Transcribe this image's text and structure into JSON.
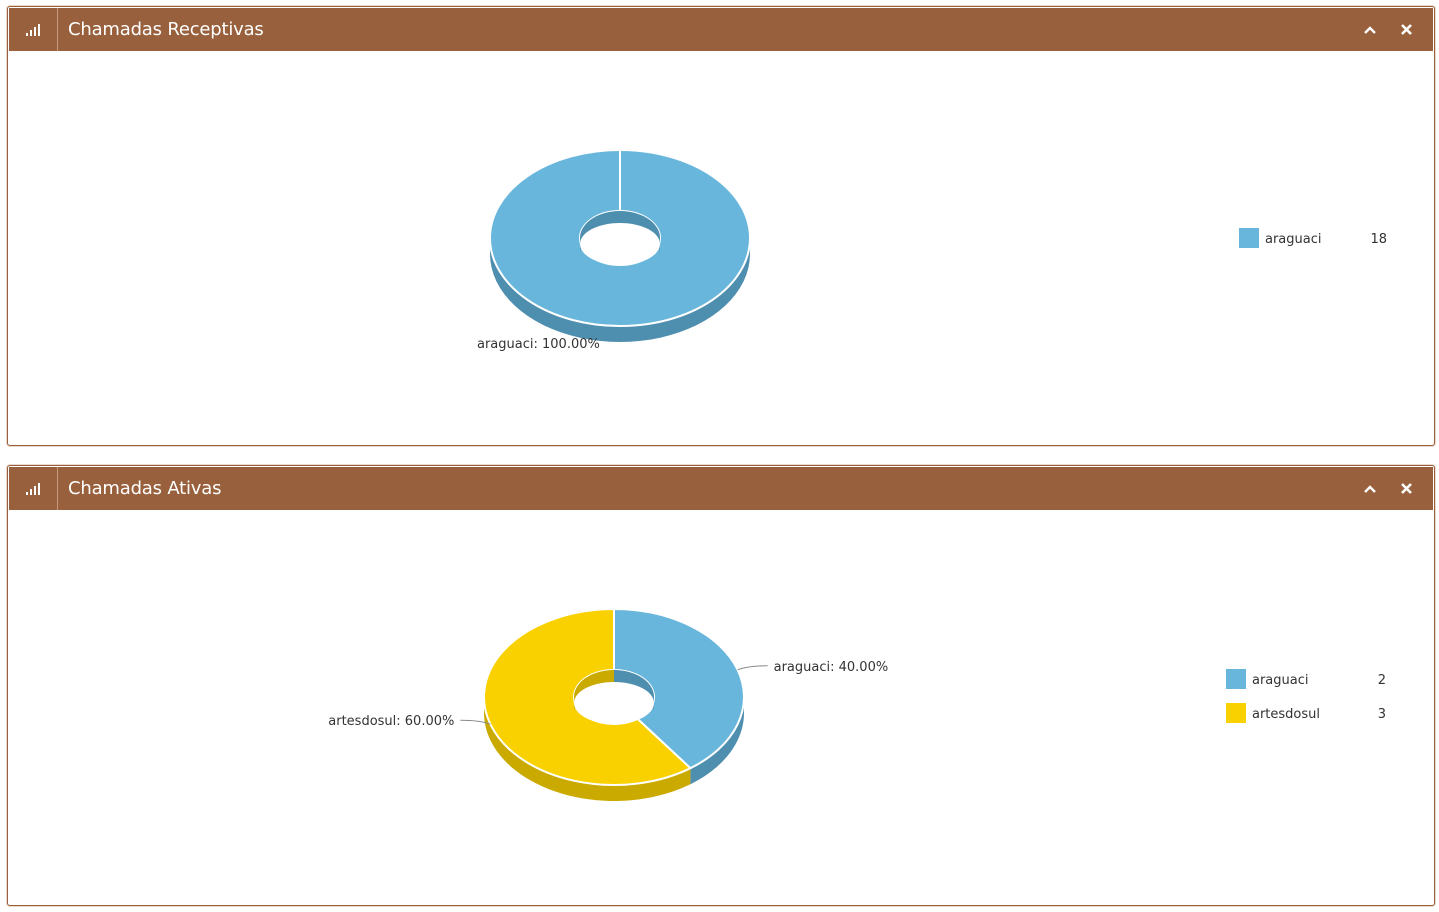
{
  "widgets": [
    {
      "title": "Chamadas Receptivas",
      "icon": "bar-signal-icon",
      "tools": [
        "chevron-up-icon",
        "close-icon"
      ],
      "chart_data": {
        "type": "pie",
        "donut": true,
        "three_d": true,
        "legend_position": "right",
        "slices": [
          {
            "label": "araguaci",
            "value": 18,
            "percent_label": "araguaci: 100.00%",
            "color": "#69b6dc",
            "side_color": "#4e8fb0"
          }
        ]
      }
    },
    {
      "title": "Chamadas Ativas",
      "icon": "bar-signal-icon",
      "tools": [
        "chevron-up-icon",
        "close-icon"
      ],
      "chart_data": {
        "type": "pie",
        "donut": true,
        "three_d": true,
        "legend_position": "right",
        "slices": [
          {
            "label": "araguaci",
            "value": 2,
            "percent_label": "araguaci: 40.00%",
            "color": "#69b6dc",
            "side_color": "#4e8fb0"
          },
          {
            "label": "artesdosul",
            "value": 3,
            "percent_label": "artesdosul: 60.00%",
            "color": "#fad100",
            "side_color": "#cbaa00"
          }
        ]
      }
    }
  ],
  "colors": {
    "header": "#98603c",
    "border": "#9a5e3a"
  }
}
